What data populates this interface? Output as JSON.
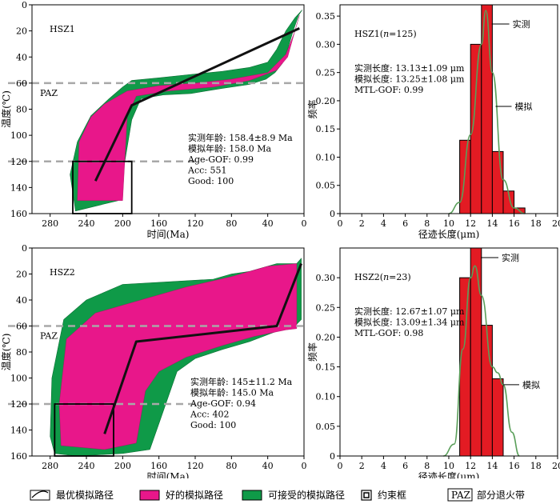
{
  "chart_data": [
    {
      "type": "area",
      "name": "HSZ1",
      "panel_label": "HSZ1",
      "xlabel": "时间(Ma)",
      "ylabel": "温度(℃)",
      "xlim": [
        300,
        0
      ],
      "ylim": [
        160,
        0
      ],
      "xticks": [
        280,
        240,
        200,
        160,
        120,
        80,
        40,
        0
      ],
      "yticks": [
        0,
        20,
        40,
        60,
        80,
        100,
        120,
        140,
        160
      ],
      "paz": {
        "label": "PAZ",
        "temps": [
          60,
          120
        ]
      },
      "stats": [
        "实测年龄: 158.4±8.9 Ma",
        "模拟年龄: 158.0 Ma",
        "Age-GOF: 0.99",
        "Acc: 551",
        "Good: 100"
      ],
      "constraint_box": {
        "time": [
          255,
          190
        ],
        "temp": [
          120,
          160
        ]
      },
      "acceptable_envelope": [
        [
          2,
          4
        ],
        [
          6,
          8
        ],
        [
          12,
          20
        ],
        [
          18,
          34
        ],
        [
          24,
          45
        ],
        [
          32,
          52
        ],
        [
          42,
          57
        ],
        [
          60,
          61
        ],
        [
          90,
          64
        ],
        [
          125,
          68
        ],
        [
          155,
          69
        ],
        [
          180,
          72
        ],
        [
          190,
          88
        ],
        [
          200,
          130
        ],
        [
          205,
          150
        ],
        [
          252,
          158
        ],
        [
          258,
          130
        ],
        [
          250,
          105
        ],
        [
          235,
          85
        ],
        [
          215,
          72
        ],
        [
          200,
          63
        ],
        [
          190,
          58
        ],
        [
          160,
          56
        ],
        [
          120,
          53
        ],
        [
          90,
          51
        ],
        [
          60,
          48
        ],
        [
          40,
          44
        ],
        [
          30,
          34
        ],
        [
          20,
          20
        ],
        [
          10,
          10
        ],
        [
          2,
          4
        ]
      ],
      "good_envelope": [
        [
          5,
          8
        ],
        [
          10,
          20
        ],
        [
          18,
          40
        ],
        [
          30,
          50
        ],
        [
          60,
          58
        ],
        [
          100,
          63
        ],
        [
          150,
          66
        ],
        [
          185,
          70
        ],
        [
          195,
          85
        ],
        [
          200,
          150
        ],
        [
          250,
          150
        ],
        [
          248,
          105
        ],
        [
          235,
          86
        ],
        [
          220,
          76
        ],
        [
          195,
          66
        ],
        [
          160,
          62
        ],
        [
          120,
          60
        ],
        [
          80,
          57
        ],
        [
          40,
          52
        ],
        [
          20,
          38
        ],
        [
          10,
          20
        ],
        [
          5,
          8
        ]
      ],
      "best_path": [
        [
          230,
          135
        ],
        [
          190,
          77
        ],
        [
          5,
          18
        ]
      ],
      "histogram": {
        "label": "HSZ1(n=125)",
        "xlabel": "径迹长度(μm)",
        "ylabel": "频率",
        "xlim": [
          0,
          20
        ],
        "ylim": [
          0,
          0.37
        ],
        "xticks": [
          0,
          2,
          4,
          6,
          8,
          10,
          12,
          14,
          16,
          18,
          20
        ],
        "yticks": [
          0,
          0.05,
          0.1,
          0.15,
          0.2,
          0.25,
          0.3,
          0.35
        ],
        "bin_edges": [
          11,
          12,
          13,
          14,
          15,
          16,
          17
        ],
        "values": [
          0.13,
          0.3,
          0.37,
          0.11,
          0.04,
          0.01
        ],
        "measured_label": "实测",
        "model_label": "模拟",
        "stats": [
          "实测长度: 13.13±1.09 μm",
          "模拟长度: 13.25±1.08 μm",
          "MTL-GOF: 0.99"
        ],
        "model_curve": [
          [
            10,
            0
          ],
          [
            11,
            0.02
          ],
          [
            12,
            0.14
          ],
          [
            13,
            0.3
          ],
          [
            13.4,
            0.36
          ],
          [
            14,
            0.25
          ],
          [
            15,
            0.06
          ],
          [
            16,
            0.01
          ],
          [
            17,
            0
          ]
        ]
      }
    },
    {
      "type": "area",
      "name": "HSZ2",
      "panel_label": "HSZ2",
      "xlabel": "时间(Ma)",
      "ylabel": "温度(℃)",
      "xlim": [
        300,
        0
      ],
      "ylim": [
        160,
        0
      ],
      "xticks": [
        280,
        240,
        200,
        160,
        120,
        80,
        40,
        0
      ],
      "yticks": [
        0,
        20,
        40,
        60,
        80,
        100,
        120,
        140,
        160
      ],
      "paz": {
        "label": "PAZ",
        "temps": [
          60,
          120
        ]
      },
      "stats": [
        "实测年龄: 145±11.2 Ma",
        "模拟年龄: 145.0 Ma",
        "Age-GOF: 0.94",
        "Acc: 402",
        "Good: 100"
      ],
      "constraint_box": {
        "time": [
          275,
          210
        ],
        "temp": [
          120,
          160
        ]
      },
      "acceptable_envelope": [
        [
          3,
          8
        ],
        [
          8,
          12
        ],
        [
          30,
          12
        ],
        [
          60,
          18
        ],
        [
          80,
          20
        ],
        [
          100,
          24
        ],
        [
          150,
          26
        ],
        [
          200,
          28
        ],
        [
          240,
          40
        ],
        [
          265,
          55
        ],
        [
          278,
          100
        ],
        [
          280,
          145
        ],
        [
          275,
          158
        ],
        [
          250,
          160
        ],
        [
          200,
          158
        ],
        [
          170,
          155
        ],
        [
          160,
          135
        ],
        [
          150,
          115
        ],
        [
          140,
          95
        ],
        [
          120,
          85
        ],
        [
          90,
          78
        ],
        [
          60,
          72
        ],
        [
          30,
          64
        ],
        [
          10,
          60
        ],
        [
          3,
          55
        ],
        [
          3,
          8
        ]
      ],
      "good_envelope": [
        [
          8,
          12
        ],
        [
          40,
          14
        ],
        [
          80,
          22
        ],
        [
          130,
          30
        ],
        [
          180,
          40
        ],
        [
          230,
          50
        ],
        [
          262,
          70
        ],
        [
          270,
          120
        ],
        [
          268,
          152
        ],
        [
          220,
          155
        ],
        [
          185,
          150
        ],
        [
          175,
          110
        ],
        [
          160,
          95
        ],
        [
          130,
          84
        ],
        [
          90,
          75
        ],
        [
          55,
          68
        ],
        [
          20,
          63
        ],
        [
          8,
          62
        ],
        [
          8,
          12
        ]
      ],
      "best_path": [
        [
          220,
          143
        ],
        [
          185,
          72
        ],
        [
          30,
          60
        ],
        [
          3,
          12
        ]
      ],
      "histogram": {
        "label": "HSZ2(n=23)",
        "xlabel": "径迹长度(μm)",
        "ylabel": "频率",
        "xlim": [
          0,
          20
        ],
        "ylim": [
          0,
          0.35
        ],
        "xticks": [
          0,
          2,
          4,
          6,
          8,
          10,
          12,
          14,
          16,
          18,
          20
        ],
        "yticks": [
          0,
          0.05,
          0.1,
          0.15,
          0.2,
          0.25,
          0.3
        ],
        "bin_edges": [
          11,
          12,
          13,
          14,
          15
        ],
        "values": [
          0.3,
          0.35,
          0.22,
          0.13
        ],
        "measured_label": "实测",
        "model_label": "模拟",
        "stats": [
          "实测长度: 12.67±1.07 μm",
          "模拟长度: 13.09±1.34 μm",
          "MTL-GOF: 0.98"
        ],
        "model_curve": [
          [
            9.5,
            0
          ],
          [
            10.5,
            0.02
          ],
          [
            11.3,
            0.18
          ],
          [
            12,
            0.3
          ],
          [
            12.4,
            0.32
          ],
          [
            13,
            0.27
          ],
          [
            14,
            0.15
          ],
          [
            14.5,
            0.14
          ],
          [
            15,
            0.12
          ],
          [
            15.8,
            0.04
          ],
          [
            16.5,
            0
          ]
        ]
      }
    }
  ],
  "legend": {
    "items": [
      "最优模拟路径",
      "好的模拟路径",
      "可接受的模拟路径",
      "约束框",
      "部分退火带"
    ],
    "paz_box_label": "PAZ"
  },
  "colors": {
    "good": "#e8178a",
    "acceptable": "#0f9a48",
    "histogram_bar": "#e31b23",
    "model_curve": "#5a9f5a",
    "paz_line": "#a8a8a8"
  }
}
